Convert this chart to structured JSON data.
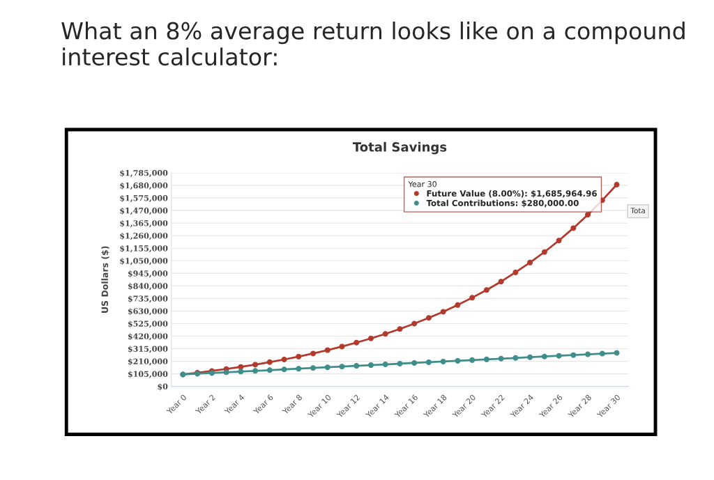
{
  "chart_data": {
    "type": "line",
    "title": "What an 8% average return looks like on a compound interest calculator:",
    "subtitle": "Total Savings",
    "ylabel": "US Dollars ($)",
    "categories": [
      "Year 0",
      null,
      "Year 2",
      null,
      "Year 4",
      null,
      "Year 6",
      null,
      "Year 8",
      null,
      "Year 10",
      null,
      "Year 12",
      null,
      "Year 14",
      null,
      "Year 16",
      null,
      "Year 18",
      null,
      "Year 20",
      null,
      "Year 22",
      null,
      "Year 24",
      null,
      "Year 26",
      null,
      "Year 28",
      null,
      "Year 30"
    ],
    "series": [
      {
        "name": "Future Value (8.00%): $1,685,964.96",
        "color": "#b23a2c",
        "values": [
          100000,
          114000,
          129000,
          145000,
          163000,
          182000,
          203000,
          225000,
          249000,
          275000,
          303000,
          333000,
          366000,
          401000,
          439000,
          480000,
          525000,
          573000,
          624000,
          680000,
          741000,
          806000,
          876000,
          953000,
          1035000,
          1123000,
          1219000,
          1323000,
          1435000,
          1556000,
          1686000
        ]
      },
      {
        "name": "Total Contributions: $280,000.00",
        "color": "#3e8e8c",
        "values": [
          100000,
          106000,
          112000,
          118000,
          124000,
          130000,
          136000,
          142000,
          148000,
          154000,
          160000,
          166000,
          172000,
          178000,
          184000,
          190000,
          196000,
          202000,
          208000,
          214000,
          220000,
          226000,
          232000,
          238000,
          244000,
          250000,
          256000,
          262000,
          268000,
          274000,
          280000
        ]
      }
    ],
    "legend_title": "Year 30",
    "legend": "top right",
    "annotations": [
      "Tota"
    ],
    "ylim": [
      0,
      1785000
    ],
    "yticks": [
      {
        "value": 0,
        "label": "$0"
      },
      {
        "value": 105000,
        "label": "$105,000"
      },
      {
        "value": 210000,
        "label": "$210,000"
      },
      {
        "value": 315000,
        "label": "$315,000"
      },
      {
        "value": 420000,
        "label": "$420,000"
      },
      {
        "value": 525000,
        "label": "$525,000"
      },
      {
        "value": 630000,
        "label": "$630,000"
      },
      {
        "value": 735000,
        "label": "$735,000"
      },
      {
        "value": 840000,
        "label": "$840,000"
      },
      {
        "value": 945000,
        "label": "$945,000"
      },
      {
        "value": 1050000,
        "label": "$1,050,000"
      },
      {
        "value": 1155000,
        "label": "$1,155,000"
      },
      {
        "value": 1260000,
        "label": "$1,260,000"
      },
      {
        "value": 1365000,
        "label": "$1,365,000"
      },
      {
        "value": 1470000,
        "label": "$1,470,000"
      },
      {
        "value": 1575000,
        "label": "$1,575,000"
      },
      {
        "value": 1680000,
        "label": "$1,680,000"
      },
      {
        "value": 1785000,
        "label": "$1,785,000"
      }
    ],
    "grid": "y",
    "marker": "circle",
    "line_style": "solid"
  }
}
